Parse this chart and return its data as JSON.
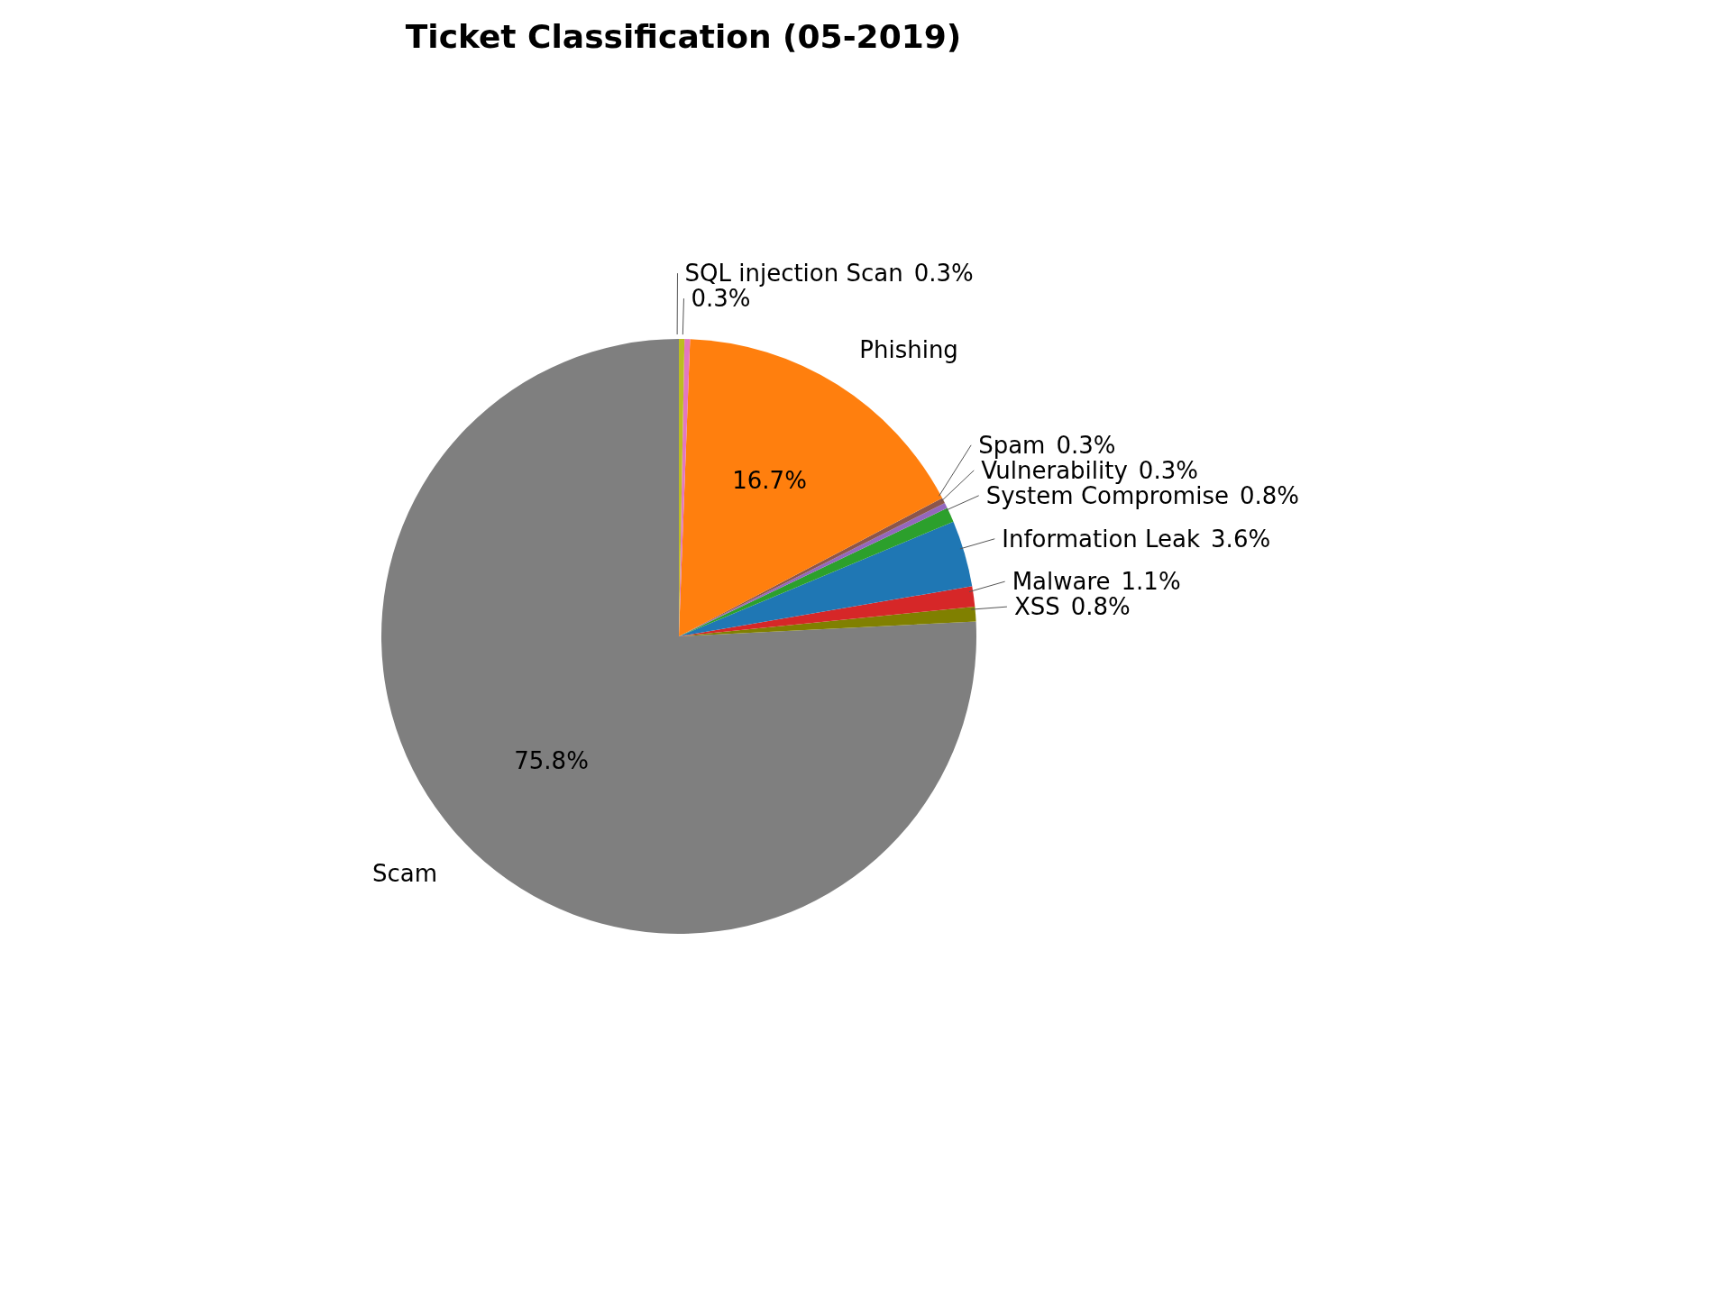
{
  "chart_data": {
    "type": "pie",
    "title": "Ticket Classification (05-2019)",
    "categories": [
      "Scam",
      "XSS",
      "Malware",
      "Information Leak",
      "System Compromise",
      "Vulnerability",
      "Spam",
      "Phishing",
      null,
      "SQL injection Scan"
    ],
    "values": [
      75.8,
      0.8,
      1.1,
      3.6,
      0.8,
      0.3,
      0.3,
      16.7,
      0.3,
      0.3
    ],
    "colors": [
      "#7f7f7f",
      "#808000",
      "#d62728",
      "#1f77b4",
      "#2ca02c",
      "#9467bd",
      "#8c564b",
      "#ff7f0e",
      "#e377c2",
      "#bcbd22"
    ],
    "value_labels": [
      "75.8%",
      "0.8%",
      "1.1%",
      "3.6%",
      "0.8%",
      "0.3%",
      "0.3%",
      "16.7%",
      "0.3%",
      "0.3%"
    ],
    "legend": false
  }
}
